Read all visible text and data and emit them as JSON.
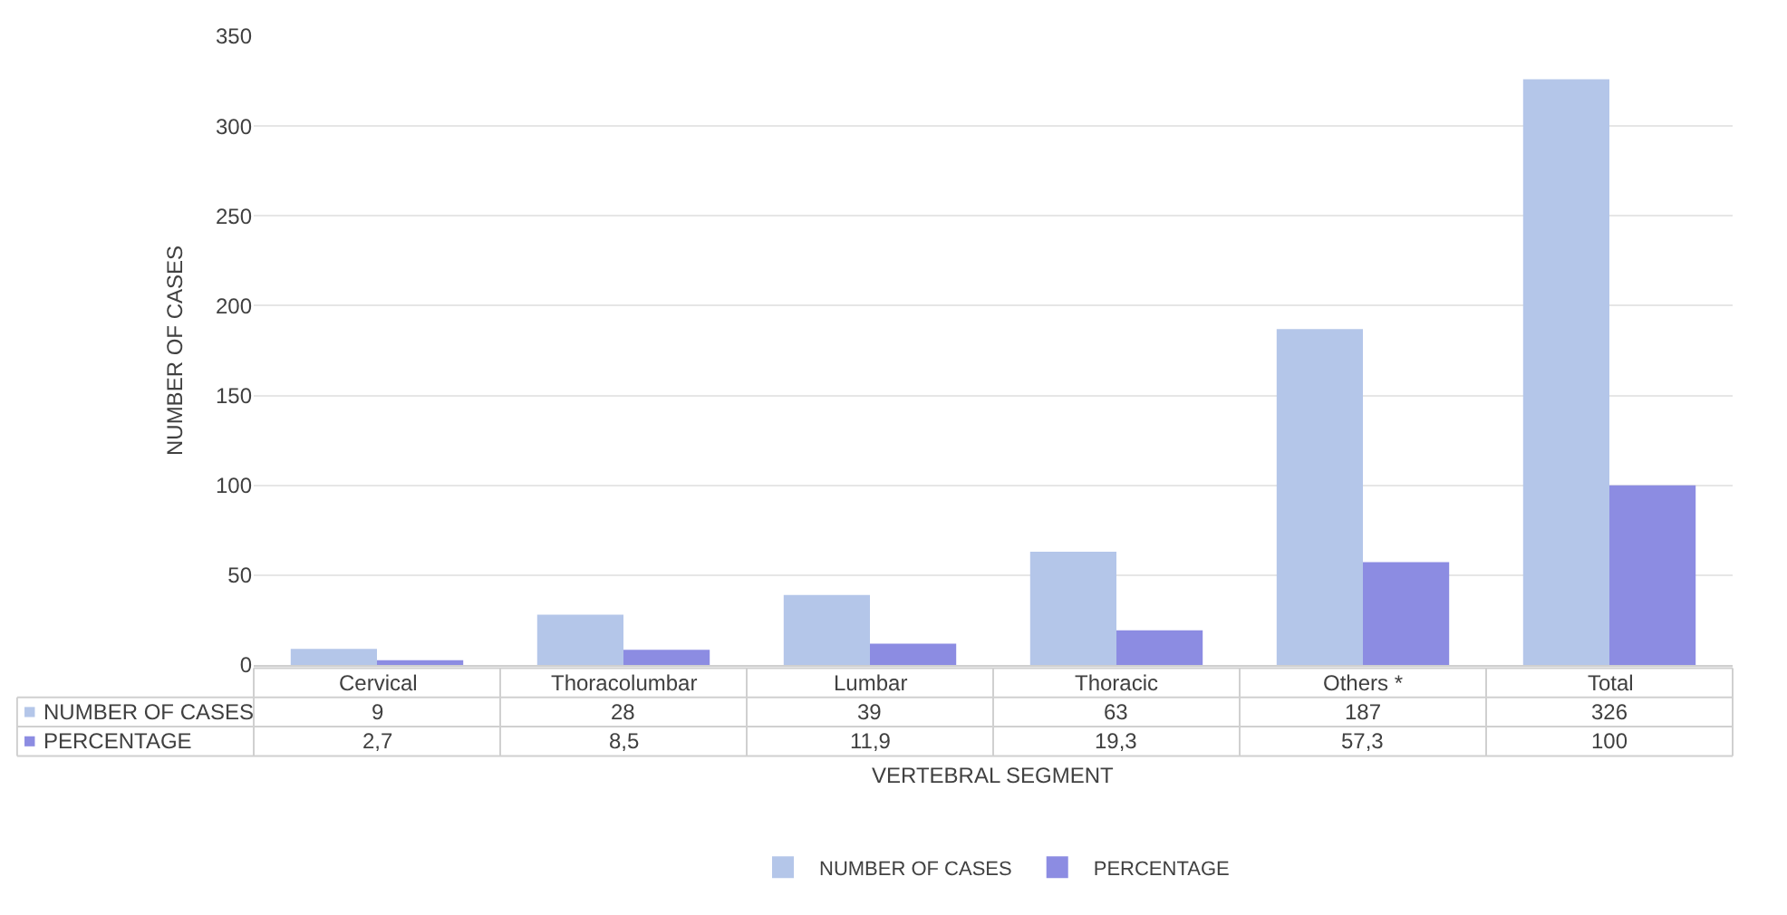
{
  "chart_data": {
    "type": "bar",
    "xlabel": "VERTEBRAL SEGMENT",
    "ylabel": "NUMBER OF CASES",
    "categories": [
      "Cervical",
      "Thoracolumbar",
      "Lumbar",
      "Thoracic",
      "Others *",
      "Total"
    ],
    "series": [
      {
        "name": "NUMBER OF CASES",
        "color": "#b4c6e9",
        "values": [
          9,
          28,
          39,
          63,
          187,
          326
        ],
        "value_labels": [
          "9",
          "28",
          "39",
          "63",
          "187",
          "326"
        ]
      },
      {
        "name": "PERCENTAGE",
        "color": "#8c8ce2",
        "values": [
          2.7,
          8.5,
          11.9,
          19.3,
          57.3,
          100
        ],
        "value_labels": [
          "2,7",
          "8,5",
          "11,9",
          "19,3",
          "57,3",
          "100"
        ]
      }
    ],
    "ylim": [
      0,
      350
    ],
    "yticks": [
      0,
      50,
      100,
      150,
      200,
      250,
      300,
      350
    ],
    "grid": "y",
    "legend": "bottom"
  }
}
